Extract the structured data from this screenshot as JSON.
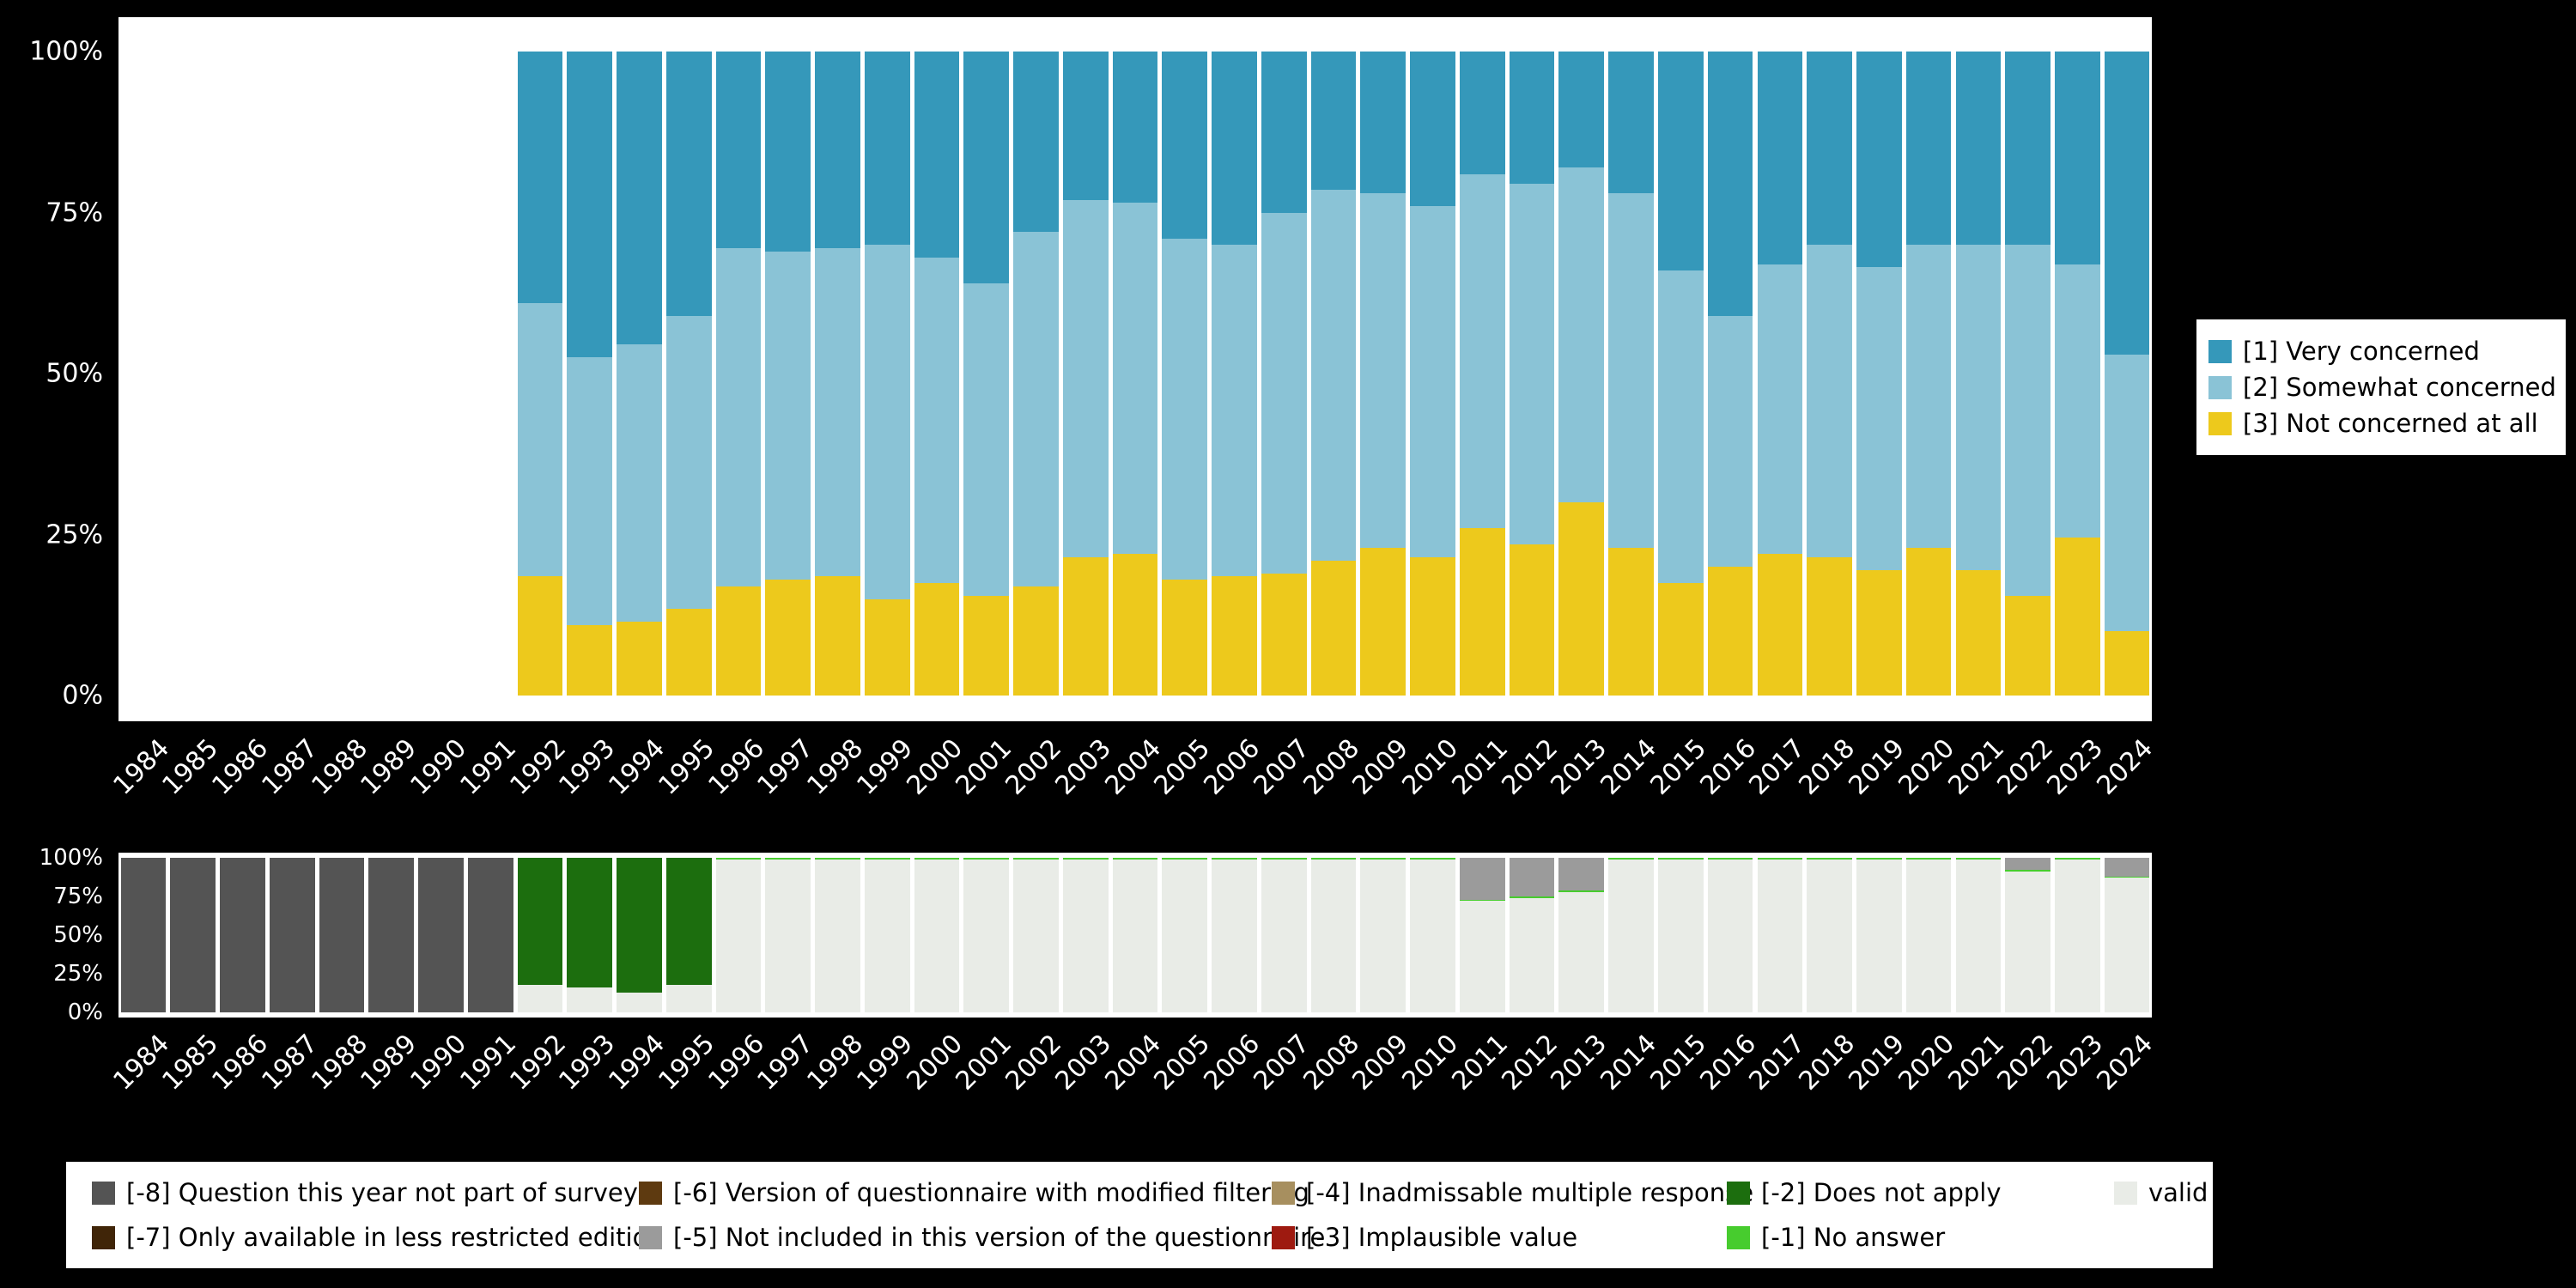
{
  "figure": {
    "background": "#000000",
    "panel_background": "#ffffff"
  },
  "chart_data": [
    {
      "type": "bar",
      "stacked": true,
      "units": "percent",
      "title": "",
      "ylim": [
        0,
        100
      ],
      "yticks": [
        "0%",
        "25%",
        "50%",
        "75%",
        "100%"
      ],
      "legend_position": "right",
      "categories": [
        "1984",
        "1985",
        "1986",
        "1987",
        "1988",
        "1989",
        "1990",
        "1991",
        "1992",
        "1993",
        "1994",
        "1995",
        "1996",
        "1997",
        "1998",
        "1999",
        "2000",
        "2001",
        "2002",
        "2003",
        "2004",
        "2005",
        "2006",
        "2007",
        "2008",
        "2009",
        "2010",
        "2011",
        "2012",
        "2013",
        "2014",
        "2015",
        "2016",
        "2017",
        "2018",
        "2019",
        "2020",
        "2021",
        "2022",
        "2023",
        "2024"
      ],
      "series": [
        {
          "name": "[3] Not concerned at all",
          "color": "#EDC91C",
          "values": [
            null,
            null,
            null,
            null,
            null,
            null,
            null,
            null,
            18.5,
            11,
            11.5,
            13.5,
            17,
            18,
            18.5,
            15,
            17.5,
            15.5,
            17,
            21.5,
            22,
            18,
            18.5,
            19,
            21,
            23,
            21.5,
            26,
            23.5,
            30,
            23,
            17.5,
            20,
            22,
            21.5,
            19.5,
            23,
            19.5,
            15.5,
            24.5,
            10
          ]
        },
        {
          "name": "[2] Somewhat concerned",
          "color": "#8AC3D6",
          "values": [
            null,
            null,
            null,
            null,
            null,
            null,
            null,
            null,
            42.5,
            41.5,
            43,
            45.5,
            52.5,
            51,
            51,
            55,
            50.5,
            48.5,
            55,
            55.5,
            54.5,
            53,
            51.5,
            56,
            57.5,
            55,
            54.5,
            55,
            56,
            52,
            55,
            48.5,
            39,
            45,
            48.5,
            47,
            47,
            50.5,
            54.5,
            42.5,
            43
          ]
        },
        {
          "name": "[1] Very concerned",
          "color": "#3598BA",
          "values": [
            null,
            null,
            null,
            null,
            null,
            null,
            null,
            null,
            39,
            47.5,
            45.5,
            41,
            30.5,
            31,
            30.5,
            30,
            32,
            36,
            28,
            23,
            23.5,
            29,
            30,
            25,
            21.5,
            22,
            24,
            19,
            20.5,
            18,
            22,
            34,
            41,
            33,
            30,
            33.5,
            30,
            30,
            30,
            33,
            47
          ]
        }
      ]
    },
    {
      "type": "bar",
      "stacked": true,
      "units": "percent",
      "title": "",
      "ylim": [
        0,
        100
      ],
      "yticks": [
        "0%",
        "25%",
        "50%",
        "75%",
        "100%"
      ],
      "categories": [
        "1984",
        "1985",
        "1986",
        "1987",
        "1988",
        "1989",
        "1990",
        "1991",
        "1992",
        "1993",
        "1994",
        "1995",
        "1996",
        "1997",
        "1998",
        "1999",
        "2000",
        "2001",
        "2002",
        "2003",
        "2004",
        "2005",
        "2006",
        "2007",
        "2008",
        "2009",
        "2010",
        "2011",
        "2012",
        "2013",
        "2014",
        "2015",
        "2016",
        "2017",
        "2018",
        "2019",
        "2020",
        "2021",
        "2022",
        "2023",
        "2024"
      ],
      "series": [
        {
          "name": "valid cases",
          "color": "#E9ECE7",
          "values": [
            0,
            0,
            0,
            0,
            0,
            0,
            0,
            0,
            18,
            16,
            13,
            18,
            99,
            99,
            99,
            99,
            99,
            99,
            99,
            99,
            99,
            99,
            99,
            99,
            99,
            99,
            99,
            72,
            74,
            78,
            99,
            99,
            99,
            99,
            99,
            99,
            99,
            99,
            91,
            99,
            87
          ]
        },
        {
          "name": "[-1] No answer",
          "color": "#47CC2E",
          "values": [
            0,
            0,
            0,
            0,
            0,
            0,
            0,
            0,
            0,
            0,
            0,
            0,
            1,
            1,
            1,
            1,
            1,
            1,
            1,
            1,
            1,
            1,
            1,
            1,
            1,
            1,
            1,
            1,
            1,
            1,
            1,
            1,
            1,
            1,
            1,
            1,
            1,
            1,
            1,
            1,
            1
          ]
        },
        {
          "name": "[-2] Does not apply",
          "color": "#1C6E0E",
          "values": [
            0,
            0,
            0,
            0,
            0,
            0,
            0,
            0,
            82,
            84,
            87,
            82,
            0,
            0,
            0,
            0,
            0,
            0,
            0,
            0,
            0,
            0,
            0,
            0,
            0,
            0,
            0,
            0,
            0,
            0,
            0,
            0,
            0,
            0,
            0,
            0,
            0,
            0,
            0,
            0,
            0
          ]
        },
        {
          "name": "[-5] Not included in this version of the questionnaire",
          "color": "#9B9B9B",
          "values": [
            0,
            0,
            0,
            0,
            0,
            0,
            0,
            0,
            0,
            0,
            0,
            0,
            0,
            0,
            0,
            0,
            0,
            0,
            0,
            0,
            0,
            0,
            0,
            0,
            0,
            0,
            0,
            27,
            25,
            21,
            0,
            0,
            0,
            0,
            0,
            0,
            0,
            0,
            8,
            0,
            12
          ]
        },
        {
          "name": "[-8] Question this year not part of survey",
          "color": "#545454",
          "values": [
            100,
            100,
            100,
            100,
            100,
            100,
            100,
            100,
            0,
            0,
            0,
            0,
            0,
            0,
            0,
            0,
            0,
            0,
            0,
            0,
            0,
            0,
            0,
            0,
            0,
            0,
            0,
            0,
            0,
            0,
            0,
            0,
            0,
            0,
            0,
            0,
            0,
            0,
            0,
            0,
            0
          ]
        }
      ]
    }
  ],
  "legend_main": {
    "items": [
      {
        "label": "[1] Very concerned",
        "color": "#3598BA"
      },
      {
        "label": "[2] Somewhat concerned",
        "color": "#8AC3D6"
      },
      {
        "label": "[3] Not concerned at all",
        "color": "#EDC91C"
      }
    ]
  },
  "legend_missing": {
    "items": [
      {
        "label": "[-8] Question this year not part of survey",
        "color": "#545454"
      },
      {
        "label": "[-7] Only available in less restricted edition",
        "color": "#402508"
      },
      {
        "label": "[-6] Version of questionnaire with modified filtering",
        "color": "#5E3A10"
      },
      {
        "label": "[-5] Not included in this version of the questionnaire",
        "color": "#9B9B9B"
      },
      {
        "label": "[-4] Inadmissable multiple response",
        "color": "#A78F5F"
      },
      {
        "label": "[-3] Implausible value",
        "color": "#9E1A10"
      },
      {
        "label": "[-2] Does not apply",
        "color": "#1C6E0E"
      },
      {
        "label": "[-1] No answer",
        "color": "#47CC2E"
      },
      {
        "label": "valid cases",
        "color": "#E9ECE7"
      }
    ]
  }
}
